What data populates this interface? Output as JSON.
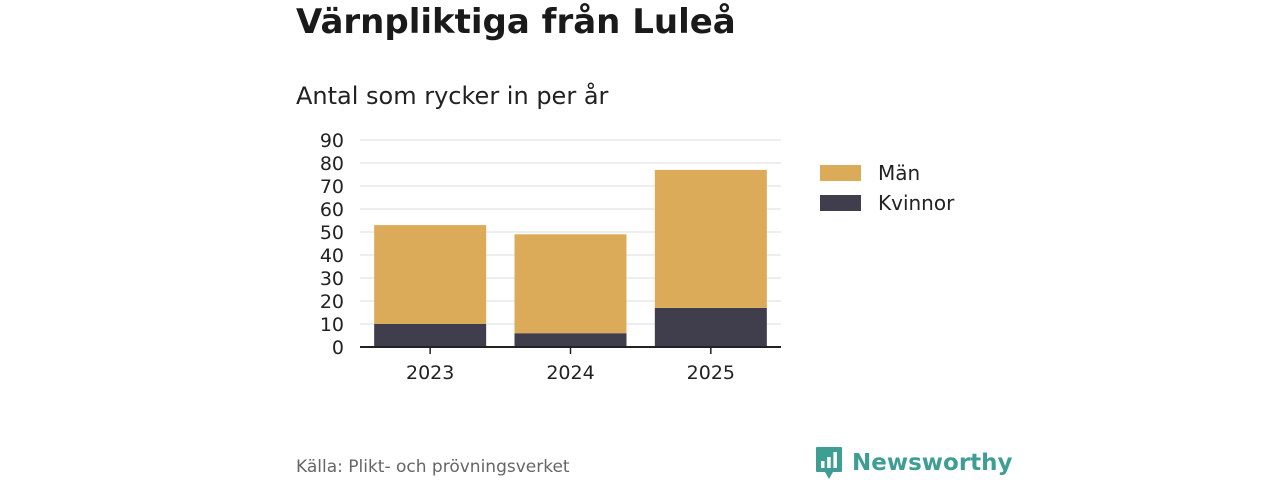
{
  "title": "Värnpliktiga från Luleå",
  "subtitle": "Antal som rycker in per år",
  "source": "Källa: Plikt- och prövningsverket",
  "brand": {
    "name": "Newsworthy",
    "icon": "newsworthy-logo-icon",
    "color": "#3f9e94"
  },
  "legend": [
    {
      "label": "Män",
      "color": "#dbab59"
    },
    {
      "label": "Kvinnor",
      "color": "#403d4c"
    }
  ],
  "chart_data": {
    "type": "bar",
    "stacked": true,
    "categories": [
      "2023",
      "2024",
      "2025"
    ],
    "series": [
      {
        "name": "Kvinnor",
        "values": [
          10,
          6,
          17
        ],
        "color": "#403d4c"
      },
      {
        "name": "Män",
        "values": [
          43,
          43,
          60
        ],
        "color": "#dbab59"
      }
    ],
    "ylim": [
      0,
      90
    ],
    "yticks": [
      "0",
      "10",
      "20",
      "30",
      "40",
      "50",
      "60",
      "70",
      "80",
      "90"
    ],
    "grid": true,
    "legend_position": "right"
  }
}
